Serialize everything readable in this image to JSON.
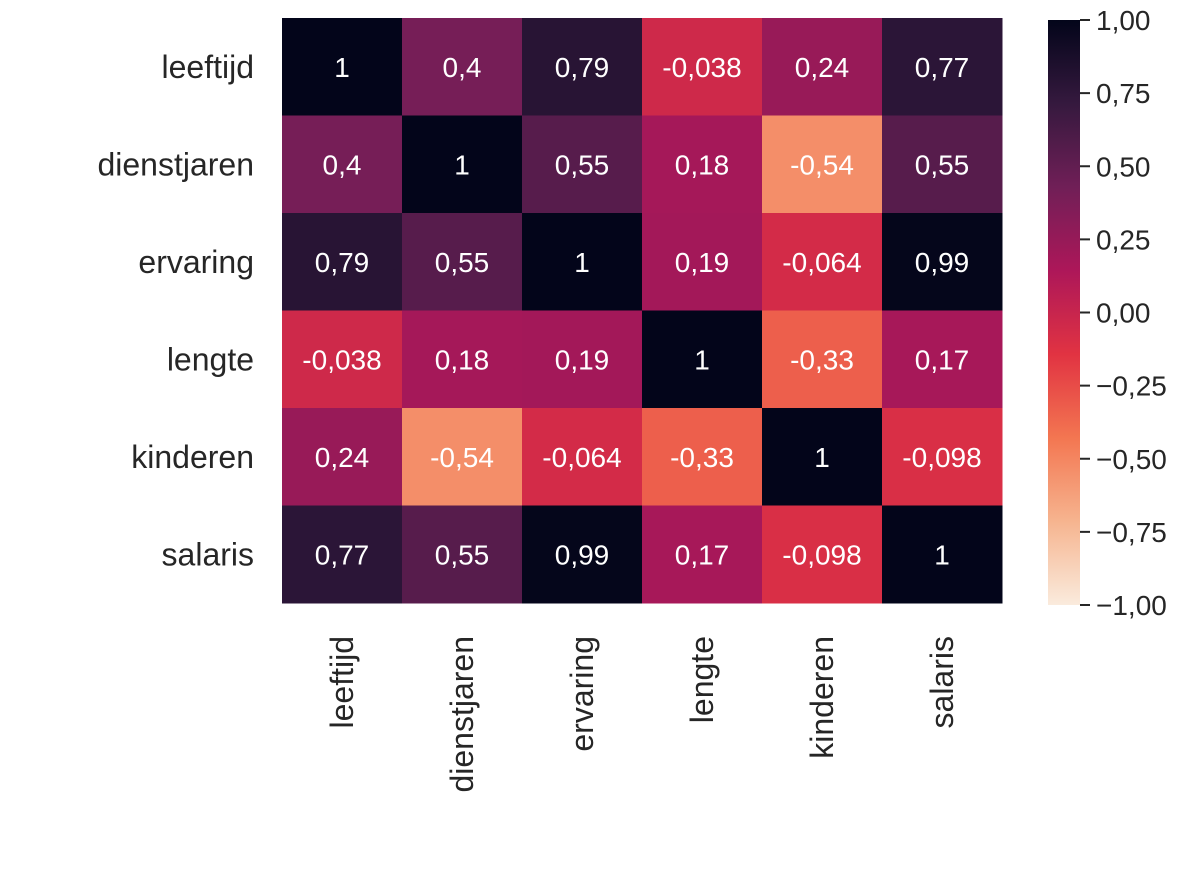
{
  "chart_data": {
    "type": "heatmap",
    "title": "",
    "xlabel": "",
    "ylabel": "",
    "row_labels": [
      "leeftijd",
      "dienstjaren",
      "ervaring",
      "lengte",
      "kinderen",
      "salaris"
    ],
    "col_labels": [
      "leeftijd",
      "dienstjaren",
      "ervaring",
      "lengte",
      "kinderen",
      "salaris"
    ],
    "values": [
      [
        1,
        0.4,
        0.79,
        -0.038,
        0.24,
        0.77
      ],
      [
        0.4,
        1,
        0.55,
        0.18,
        -0.54,
        0.55
      ],
      [
        0.79,
        0.55,
        1,
        0.19,
        -0.064,
        0.99
      ],
      [
        -0.038,
        0.18,
        0.19,
        1,
        -0.33,
        0.17
      ],
      [
        0.24,
        -0.54,
        -0.064,
        -0.33,
        1,
        -0.098
      ],
      [
        0.77,
        0.55,
        0.99,
        0.17,
        -0.098,
        1
      ]
    ],
    "annotations": [
      [
        "1",
        "0,4",
        "0,79",
        "-0,038",
        "0,24",
        "0,77"
      ],
      [
        "0,4",
        "1",
        "0,55",
        "0,18",
        "-0,54",
        "0,55"
      ],
      [
        "0,79",
        "0,55",
        "1",
        "0,19",
        "-0,064",
        "0,99"
      ],
      [
        "-0,038",
        "0,18",
        "0,19",
        "1",
        "-0,33",
        "0,17"
      ],
      [
        "0,24",
        "-0,54",
        "-0,064",
        "-0,33",
        "1",
        "-0,098"
      ],
      [
        "0,77",
        "0,55",
        "0,99",
        "0,17",
        "-0,098",
        "1"
      ]
    ],
    "colorbar": {
      "range": [
        -1,
        1
      ],
      "ticks": [
        1,
        0.75,
        0.5,
        0.25,
        0,
        -0.25,
        -0.5,
        -0.75,
        -1
      ],
      "tick_labels": [
        "1,00",
        "0,75",
        "0,50",
        "0,25",
        "0,00",
        "−0,25",
        "−0,50",
        "−0,75",
        "−1,00"
      ],
      "colormap": "rocket_r",
      "colormap_stops": [
        "#faebdd",
        "#f6b48f",
        "#f37651",
        "#e13342",
        "#ad1759",
        "#701f57",
        "#35193e",
        "#03051a"
      ]
    }
  }
}
